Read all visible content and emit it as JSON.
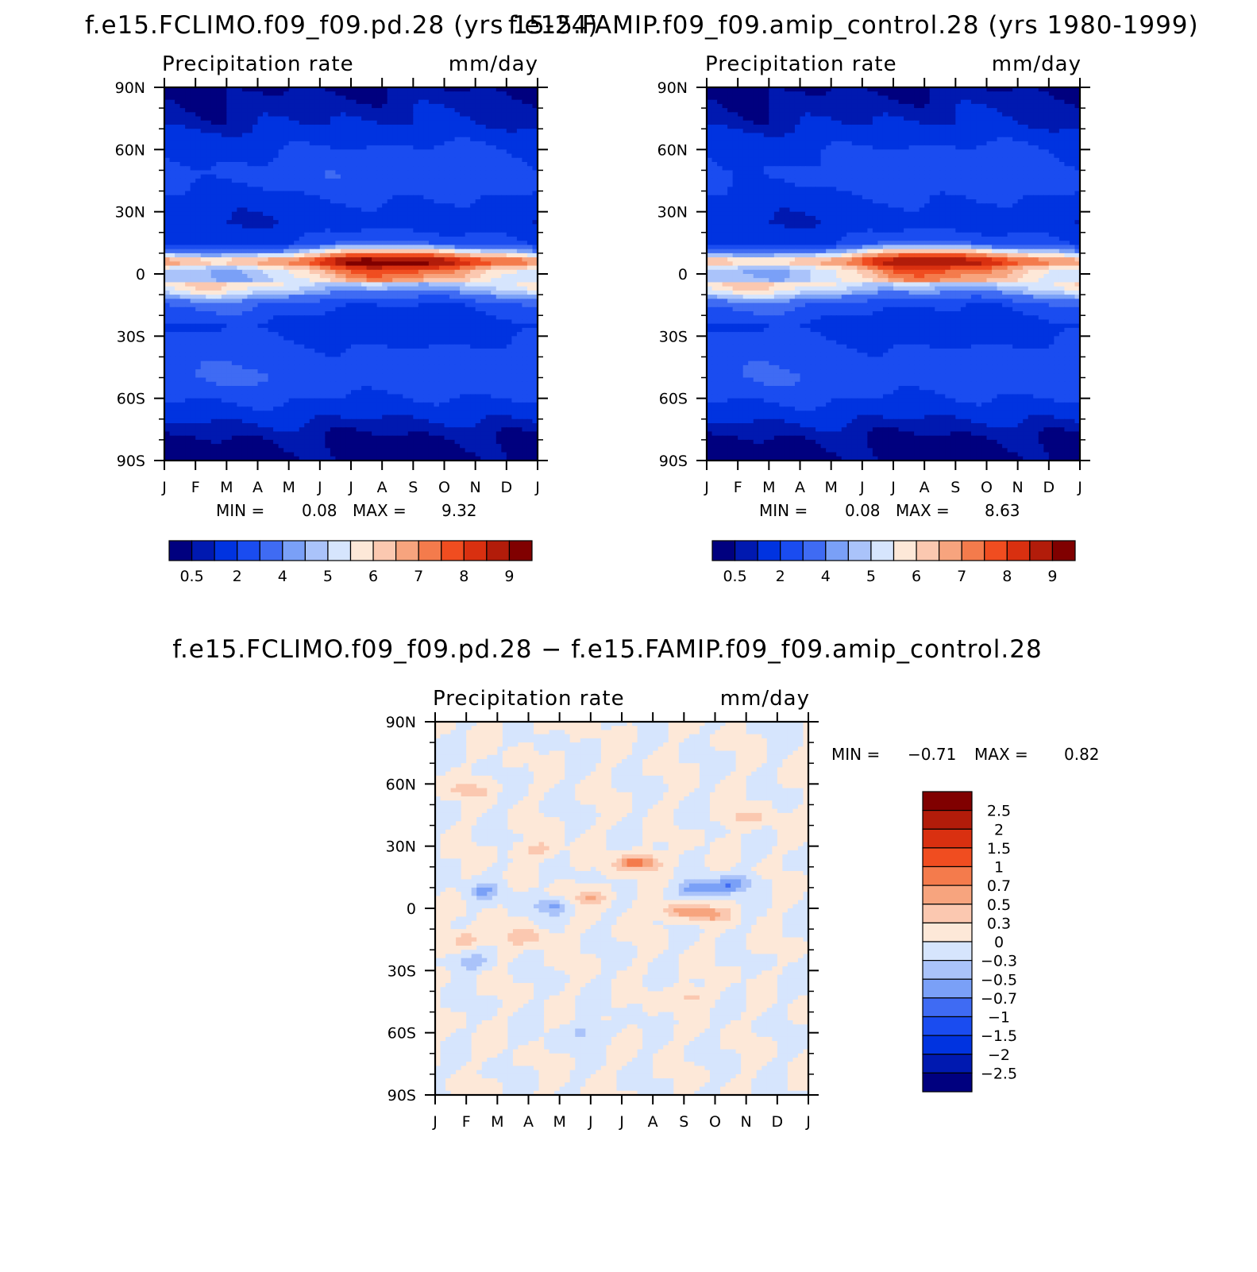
{
  "panels": [
    {
      "id": "top-left",
      "title": "f.e15.FCLIMO.f09_f09.pd.28 (yrs 15-24)",
      "left_label": "Precipitation rate",
      "right_label": "mm/day",
      "stats": {
        "min_label": "MIN =",
        "min": "0.08",
        "max_label": "MAX =",
        "max": "9.32"
      },
      "field": "climo"
    },
    {
      "id": "top-right",
      "title": "f.e15.FAMIP.f09_f09.amip_control.28 (yrs 1980-1999)",
      "left_label": "Precipitation rate",
      "right_label": "mm/day",
      "stats": {
        "min_label": "MIN =",
        "min": "0.08",
        "max_label": "MAX =",
        "max": "8.63"
      },
      "field": "amip"
    },
    {
      "id": "bottom",
      "title": "f.e15.FCLIMO.f09_f09.pd.28 − f.e15.FAMIP.f09_f09.amip_control.28",
      "left_label": "Precipitation rate",
      "right_label": "mm/day",
      "stats": {
        "min_label": "MIN =",
        "min": "−0.71",
        "max_label": "MAX =",
        "max": "0.82"
      },
      "field": "diff"
    }
  ],
  "chart_data": [
    {
      "type": "heatmap",
      "title": "f.e15.FCLIMO.f09_f09.pd.28 (yrs 15-24)",
      "subtitle_left": "Precipitation rate",
      "subtitle_right": "mm/day",
      "x_labels": [
        "J",
        "F",
        "M",
        "A",
        "M",
        "J",
        "J",
        "A",
        "S",
        "O",
        "N",
        "D",
        "J"
      ],
      "y_labels": [
        "90N",
        "60N",
        "30N",
        "0",
        "30S",
        "60S",
        "90S"
      ],
      "xlim": [
        0,
        12
      ],
      "ylim": [
        -90,
        90
      ],
      "min": 0.08,
      "max": 9.32,
      "contour_levels": [
        0.5,
        1,
        2,
        3,
        4,
        4.5,
        5,
        5.5,
        6,
        6.5,
        7,
        7.5,
        8,
        8.5,
        9
      ],
      "colorbar_labels": [
        "0.5",
        "2",
        "4",
        "5",
        "6",
        "7",
        "8",
        "9"
      ],
      "colors": [
        "#00007f",
        "#0019b0",
        "#0033e0",
        "#1a4cf0",
        "#3f6bf3",
        "#7aa0f7",
        "#aac3fa",
        "#d6e5fd",
        "#fde8d8",
        "#fbc8b0",
        "#f7a47e",
        "#f47b4c",
        "#f04d20",
        "#d93010",
        "#b21c0a",
        "#800000"
      ],
      "profile": [
        {
          "lat": -90,
          "value": 0.35,
          "seasonal_amp": 0.1
        },
        {
          "lat": -80,
          "value": 0.45,
          "seasonal_amp": 0.1
        },
        {
          "lat": -72,
          "value": 0.9,
          "seasonal_amp": 0.2
        },
        {
          "lat": -62,
          "value": 1.9,
          "seasonal_amp": 0.3
        },
        {
          "lat": -50,
          "value": 2.9,
          "seasonal_amp": 0.5
        },
        {
          "lat": -38,
          "value": 2.4,
          "seasonal_amp": 0.5
        },
        {
          "lat": -25,
          "value": 1.5,
          "seasonal_amp": 0.6
        },
        {
          "lat": -15,
          "value": 2.6,
          "seasonal_amp": 1.3
        },
        {
          "lat": -8,
          "value": 4.8,
          "seasonal_amp": 1.6
        },
        {
          "lat": -3,
          "value": 5.6,
          "seasonal_amp": 1.4
        },
        {
          "lat": 2,
          "value": 6.2,
          "seasonal_amp": 1.6
        },
        {
          "lat": 6,
          "value": 8.1,
          "seasonal_amp": 1.1
        },
        {
          "lat": 10,
          "value": 5.5,
          "seasonal_amp": 2.0
        },
        {
          "lat": 15,
          "value": 2.3,
          "seasonal_amp": 1.2
        },
        {
          "lat": 25,
          "value": 1.2,
          "seasonal_amp": 0.4
        },
        {
          "lat": 35,
          "value": 1.8,
          "seasonal_amp": 0.5
        },
        {
          "lat": 48,
          "value": 2.6,
          "seasonal_amp": 0.6
        },
        {
          "lat": 60,
          "value": 2.0,
          "seasonal_amp": 0.4
        },
        {
          "lat": 72,
          "value": 1.0,
          "seasonal_amp": 0.3
        },
        {
          "lat": 90,
          "value": 0.4,
          "seasonal_amp": 0.1
        }
      ]
    },
    {
      "type": "heatmap",
      "title": "f.e15.FAMIP.f09_f09.amip_control.28 (yrs 1980-1999)",
      "subtitle_left": "Precipitation rate",
      "subtitle_right": "mm/day",
      "x_labels": [
        "J",
        "F",
        "M",
        "A",
        "M",
        "J",
        "J",
        "A",
        "S",
        "O",
        "N",
        "D",
        "J"
      ],
      "y_labels": [
        "90N",
        "60N",
        "30N",
        "0",
        "30S",
        "60S",
        "90S"
      ],
      "xlim": [
        0,
        12
      ],
      "ylim": [
        -90,
        90
      ],
      "min": 0.08,
      "max": 8.63,
      "contour_levels": [
        0.5,
        1,
        2,
        3,
        4,
        4.5,
        5,
        5.5,
        6,
        6.5,
        7,
        7.5,
        8,
        8.5,
        9
      ],
      "colorbar_labels": [
        "0.5",
        "2",
        "4",
        "5",
        "6",
        "7",
        "8",
        "9"
      ],
      "colors": [
        "#00007f",
        "#0019b0",
        "#0033e0",
        "#1a4cf0",
        "#3f6bf3",
        "#7aa0f7",
        "#aac3fa",
        "#d6e5fd",
        "#fde8d8",
        "#fbc8b0",
        "#f7a47e",
        "#f47b4c",
        "#f04d20",
        "#d93010",
        "#b21c0a",
        "#800000"
      ],
      "profile": [
        {
          "lat": -90,
          "value": 0.35,
          "seasonal_amp": 0.1
        },
        {
          "lat": -80,
          "value": 0.45,
          "seasonal_amp": 0.1
        },
        {
          "lat": -72,
          "value": 0.9,
          "seasonal_amp": 0.2
        },
        {
          "lat": -62,
          "value": 1.9,
          "seasonal_amp": 0.3
        },
        {
          "lat": -50,
          "value": 2.8,
          "seasonal_amp": 0.5
        },
        {
          "lat": -38,
          "value": 2.4,
          "seasonal_amp": 0.5
        },
        {
          "lat": -25,
          "value": 1.5,
          "seasonal_amp": 0.6
        },
        {
          "lat": -15,
          "value": 2.7,
          "seasonal_amp": 1.3
        },
        {
          "lat": -8,
          "value": 4.9,
          "seasonal_amp": 1.6
        },
        {
          "lat": -3,
          "value": 5.7,
          "seasonal_amp": 1.4
        },
        {
          "lat": 2,
          "value": 6.0,
          "seasonal_amp": 1.6
        },
        {
          "lat": 6,
          "value": 7.7,
          "seasonal_amp": 1.0
        },
        {
          "lat": 10,
          "value": 5.4,
          "seasonal_amp": 2.0
        },
        {
          "lat": 15,
          "value": 2.3,
          "seasonal_amp": 1.2
        },
        {
          "lat": 25,
          "value": 1.2,
          "seasonal_amp": 0.4
        },
        {
          "lat": 35,
          "value": 1.8,
          "seasonal_amp": 0.5
        },
        {
          "lat": 48,
          "value": 2.5,
          "seasonal_amp": 0.6
        },
        {
          "lat": 60,
          "value": 2.0,
          "seasonal_amp": 0.4
        },
        {
          "lat": 72,
          "value": 1.0,
          "seasonal_amp": 0.3
        },
        {
          "lat": 90,
          "value": 0.4,
          "seasonal_amp": 0.1
        }
      ]
    },
    {
      "type": "heatmap",
      "title": "f.e15.FCLIMO.f09_f09.pd.28 − f.e15.FAMIP.f09_f09.amip_control.28",
      "subtitle_left": "Precipitation rate",
      "subtitle_right": "mm/day",
      "x_labels": [
        "J",
        "F",
        "M",
        "A",
        "M",
        "J",
        "J",
        "A",
        "S",
        "O",
        "N",
        "D",
        "J"
      ],
      "y_labels": [
        "90N",
        "60N",
        "30N",
        "0",
        "30S",
        "60S",
        "90S"
      ],
      "xlim": [
        0,
        12
      ],
      "ylim": [
        -90,
        90
      ],
      "min": -0.71,
      "max": 0.82,
      "contour_levels": [
        -2.5,
        -2,
        -1.5,
        -1,
        -0.7,
        -0.5,
        -0.3,
        0,
        0.3,
        0.5,
        0.7,
        1,
        1.5,
        2,
        2.5
      ],
      "colorbar_labels": [
        "2.5",
        "2",
        "1.5",
        "1",
        "0.7",
        "0.5",
        "0.3",
        "0",
        "−0.3",
        "−0.5",
        "−0.7",
        "−1",
        "−1.5",
        "−2",
        "−2.5"
      ],
      "colors": [
        "#00007f",
        "#0019b0",
        "#0033e0",
        "#1a4cf0",
        "#3f6bf3",
        "#7aa0f7",
        "#aac3fa",
        "#d6e5fd",
        "#fde8d8",
        "#fbc8b0",
        "#f7a47e",
        "#f47b4c",
        "#f04d20",
        "#d93010",
        "#b21c0a",
        "#800000"
      ],
      "features": [
        {
          "month": 6.5,
          "lat": 22,
          "value": 0.8
        },
        {
          "month": 8.5,
          "lat": 9,
          "value": -0.7
        },
        {
          "month": 9.6,
          "lat": 12,
          "value": -0.55
        },
        {
          "month": 3.8,
          "lat": 1,
          "value": -0.5
        },
        {
          "month": 7.8,
          "lat": -1,
          "value": 0.55
        },
        {
          "month": 8.8,
          "lat": -3,
          "value": 0.5
        },
        {
          "month": 1.0,
          "lat": -15,
          "value": 0.45
        },
        {
          "month": 3.0,
          "lat": -14,
          "value": 0.4
        },
        {
          "month": 1.0,
          "lat": -26,
          "value": -0.45
        },
        {
          "month": 5.0,
          "lat": 5,
          "value": 0.45
        },
        {
          "month": 1.0,
          "lat": 57,
          "value": 0.4
        },
        {
          "month": 3.3,
          "lat": 28,
          "value": 0.4
        },
        {
          "month": 10.0,
          "lat": 44,
          "value": 0.4
        },
        {
          "month": 1.5,
          "lat": 8,
          "value": -0.4
        },
        {
          "month": 8.2,
          "lat": -43,
          "value": 0.35
        },
        {
          "month": 4.8,
          "lat": -60,
          "value": -0.35
        }
      ]
    }
  ]
}
